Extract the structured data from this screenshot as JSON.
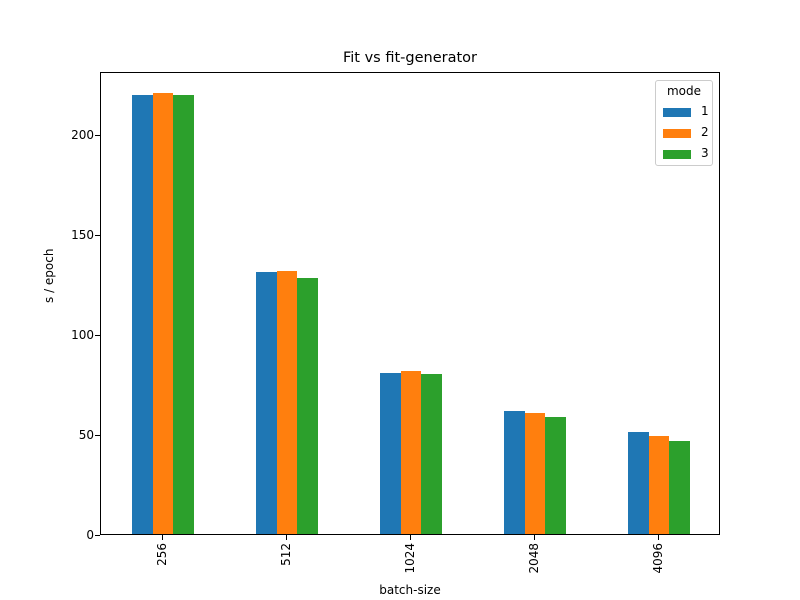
{
  "chart_data": {
    "type": "bar",
    "title": "Fit vs fit-generator",
    "xlabel": "batch-size",
    "ylabel": "s / epoch",
    "categories": [
      "256",
      "512",
      "1024",
      "2048",
      "4096"
    ],
    "series": [
      {
        "name": "1",
        "color": "#1f77b4",
        "values": [
          219.5,
          131,
          80.5,
          61.5,
          51
        ]
      },
      {
        "name": "2",
        "color": "#ff7f0e",
        "values": [
          220.5,
          131.5,
          81.5,
          60.5,
          49
        ]
      },
      {
        "name": "3",
        "color": "#2ca02c",
        "values": [
          219.5,
          128,
          80,
          58.5,
          46.5
        ]
      }
    ],
    "ylim": [
      0,
      231.5
    ],
    "yticks": [
      0,
      50,
      100,
      150,
      200
    ],
    "legend": {
      "title": "mode",
      "position": "upper right"
    },
    "grid": false
  }
}
